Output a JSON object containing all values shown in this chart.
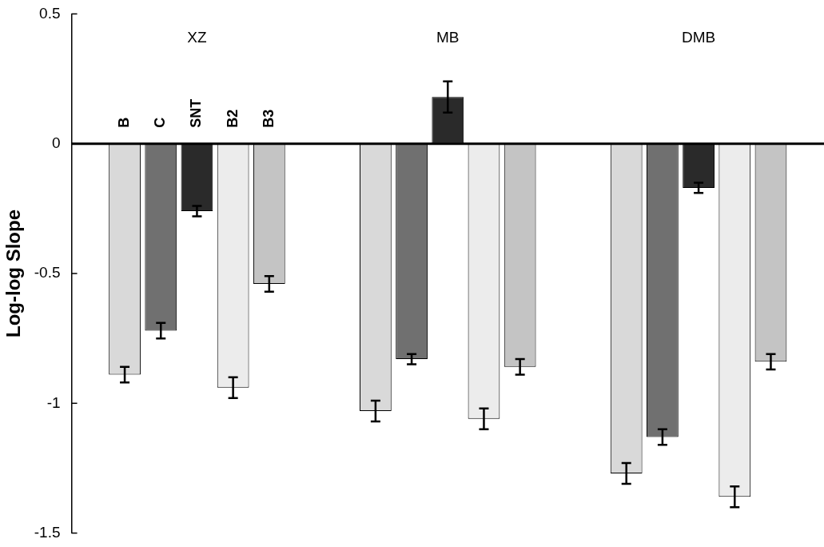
{
  "chart_data": {
    "type": "bar",
    "ylabel": "Log-log Slope",
    "categories": [
      "XZ",
      "MB",
      "DMB"
    ],
    "series": [
      {
        "name": "B",
        "color": "#d9d9d9",
        "values": [
          -0.89,
          -1.03,
          -1.27
        ],
        "errors": [
          0.03,
          0.04,
          0.04
        ]
      },
      {
        "name": "C",
        "color": "#707070",
        "values": [
          -0.72,
          -0.83,
          -1.13
        ],
        "errors": [
          0.03,
          0.02,
          0.03
        ]
      },
      {
        "name": "SNT",
        "color": "#2a2a2a",
        "values": [
          -0.26,
          0.18,
          -0.17
        ],
        "errors": [
          0.02,
          0.06,
          0.02
        ]
      },
      {
        "name": "B2",
        "color": "#ececec",
        "values": [
          -0.94,
          -1.06,
          -1.36
        ],
        "errors": [
          0.04,
          0.04,
          0.04
        ]
      },
      {
        "name": "B3",
        "color": "#c4c4c4",
        "values": [
          -0.54,
          -0.86,
          -0.84
        ],
        "errors": [
          0.03,
          0.03,
          0.03
        ]
      }
    ],
    "ref_lines": [
      {
        "axis": "y",
        "value": 0,
        "color": "#000000"
      }
    ],
    "ylim": [
      -1.5,
      0.5
    ],
    "yticks": [
      -1.5,
      -1,
      -0.5,
      0,
      0.5
    ],
    "grid": false,
    "legend": false
  }
}
